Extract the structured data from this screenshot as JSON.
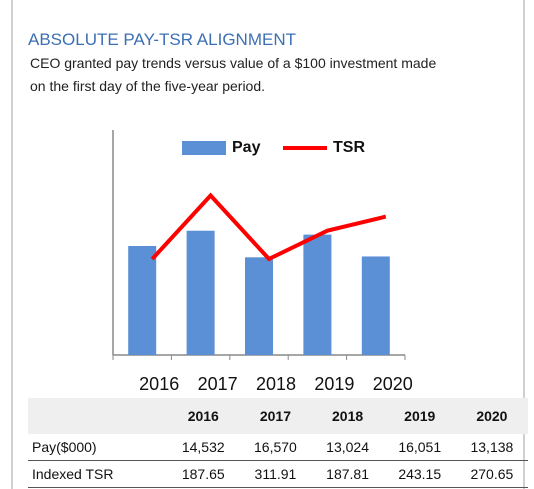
{
  "header": {
    "title": "ABSOLUTE PAY-TSR ALIGNMENT",
    "subtitle": [
      "CEO granted pay trends versus value of a $100 investment made",
      "on the first day of the five-year period."
    ]
  },
  "chart_data": {
    "type": "bar",
    "categories": [
      "2016",
      "2017",
      "2018",
      "2019",
      "2020"
    ],
    "series": [
      {
        "name": "Pay",
        "type": "bar",
        "color": "#5b8fd6",
        "values": [
          14532,
          16570,
          13024,
          16051,
          13138
        ],
        "value_labels": [
          "14,532",
          "16,570",
          "13,024",
          "16,051",
          "13,138"
        ]
      },
      {
        "name": "TSR",
        "type": "line",
        "axis": "y2",
        "color": "#ff0000",
        "values": [
          187.65,
          311.91,
          187.81,
          243.15,
          270.65
        ],
        "value_labels": [
          "187.65",
          "311.91",
          "187.81",
          "243.15",
          "270.65"
        ]
      }
    ],
    "ylim": [
      0,
      30000
    ],
    "y2lim": [
      0,
      440
    ],
    "legend": "top"
  },
  "table": {
    "row_labels": [
      "Pay($000)",
      "Indexed TSR"
    ]
  }
}
